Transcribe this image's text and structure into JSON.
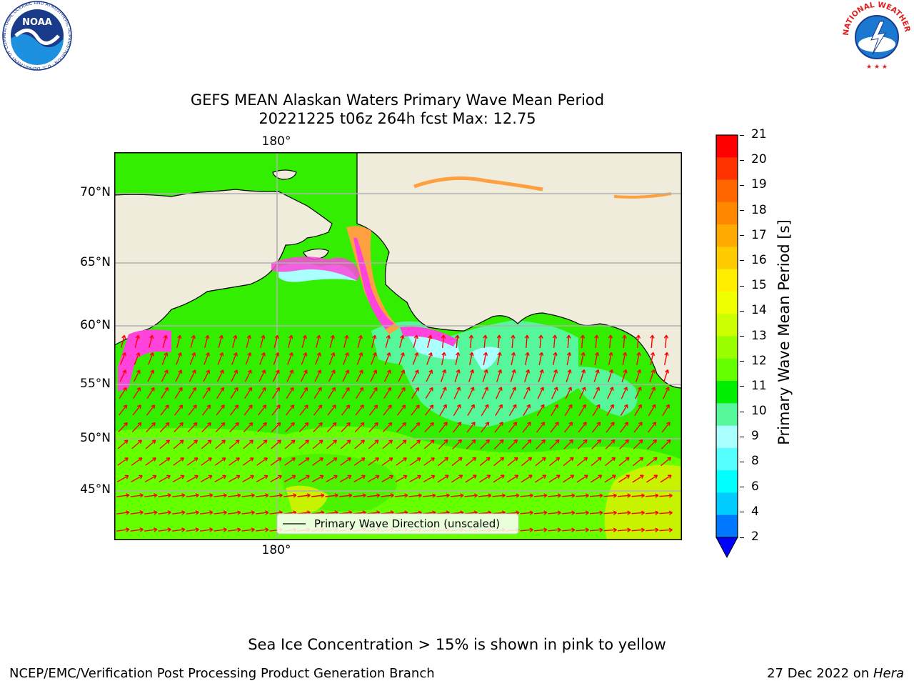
{
  "title": {
    "line1": "GEFS MEAN Alaskan Waters Primary Wave Mean Period",
    "line2": "20221225 t06z 264h fcst   Max: 12.75"
  },
  "map": {
    "lat_labels": [
      "70°N",
      "65°N",
      "60°N",
      "55°N",
      "50°N",
      "45°N"
    ],
    "lon_label_top": "180°",
    "lon_label_bottom": "180°",
    "legend_label": "Primary Wave Direction (unscaled)",
    "colors": {
      "land": "#efecdc",
      "ocean_main": "#33ee00",
      "ocean_light": "#66ff00",
      "ocean_teal": "#55f79a",
      "ocean_yellow": "#c8f300",
      "arrow": "#ff0000",
      "ice_pink": "#ff44dd",
      "ice_orange": "#ffa040",
      "ice_cyan": "#aaffff",
      "grid": "#b0b0b0"
    }
  },
  "colorbar": {
    "label": "Primary Wave Mean Period [s]",
    "ticks": [
      "21",
      "20",
      "19",
      "18",
      "17",
      "16",
      "15",
      "14",
      "13",
      "12",
      "11",
      "10",
      "9",
      "8",
      "6",
      "4",
      "2"
    ],
    "colors": [
      "#ff0000",
      "#ff3300",
      "#ff6600",
      "#ff8800",
      "#ffaa00",
      "#ffcc00",
      "#ffee00",
      "#f0ff00",
      "#ccff00",
      "#99ff00",
      "#66ff00",
      "#00ee00",
      "#55f79a",
      "#aaffff",
      "#55ffff",
      "#00ffff",
      "#00ccff",
      "#0077ff"
    ],
    "extend_color": "#0000ff"
  },
  "caption": "Sea Ice Concentration > 15% is shown in pink to yellow",
  "footer": {
    "left": "NCEP/EMC/Verification Post Processing Product Generation Branch",
    "date": "27 Dec 2022 on ",
    "machine": "Hera"
  },
  "logos": {
    "noaa_text": "NOAA",
    "noaa_ring": "NATIONAL OCEANIC AND ATMOSPHERIC ADMINISTRATION · U.S. DEPARTMENT OF COMMERCE",
    "nws_ring": "NATIONAL WEATHER SERVICE"
  }
}
